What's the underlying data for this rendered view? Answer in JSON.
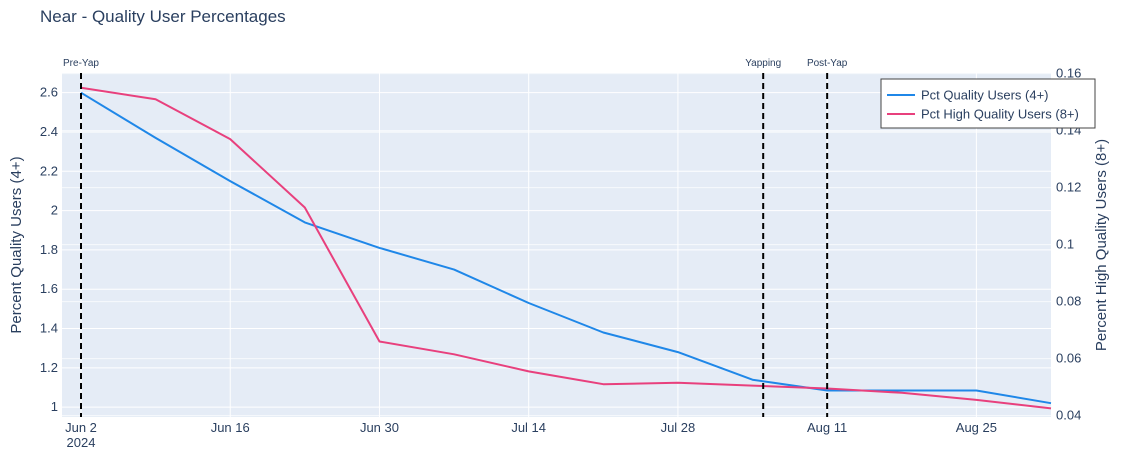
{
  "colors": {
    "plot_bg": "#E5ECF6",
    "grid": "#FFFFFF",
    "series_quality": "#1F87E8",
    "series_high_quality": "#E8407D",
    "event_line": "#000000",
    "text": "#2A3F5F"
  },
  "chart_data": {
    "type": "line",
    "title": "Near - Quality User Percentages",
    "xlabel": "",
    "ylabel": "Percent Quality Users (4+)",
    "y2label": "Percent High Quality Users (8+)",
    "grid": true,
    "legend_position": "top-right",
    "x": [
      "2024-06-02",
      "2024-06-09",
      "2024-06-16",
      "2024-06-23",
      "2024-06-30",
      "2024-07-07",
      "2024-07-14",
      "2024-07-21",
      "2024-07-28",
      "2024-08-04",
      "2024-08-11",
      "2024-08-18",
      "2024-08-25",
      "2024-09-01"
    ],
    "xlim": [
      "2024-06-02",
      "2024-09-01"
    ],
    "ylim": [
      0.95,
      2.7
    ],
    "y2lim": [
      0.0395,
      0.1602
    ],
    "x_ticks": [
      {
        "date": "2024-06-02",
        "label": "Jun 2",
        "sublabel": "2024"
      },
      {
        "date": "2024-06-16",
        "label": "Jun 16",
        "sublabel": ""
      },
      {
        "date": "2024-06-30",
        "label": "Jun 30",
        "sublabel": ""
      },
      {
        "date": "2024-07-14",
        "label": "Jul 14",
        "sublabel": ""
      },
      {
        "date": "2024-07-28",
        "label": "Jul 28",
        "sublabel": ""
      },
      {
        "date": "2024-08-11",
        "label": "Aug 11",
        "sublabel": ""
      },
      {
        "date": "2024-08-25",
        "label": "Aug 25",
        "sublabel": ""
      }
    ],
    "y_ticks": [
      1,
      1.2,
      1.4,
      1.6,
      1.8,
      2,
      2.2,
      2.4,
      2.6
    ],
    "y2_ticks": [
      0.04,
      0.06,
      0.08,
      0.1,
      0.12,
      0.14,
      0.16
    ],
    "series": [
      {
        "name": "Pct Quality Users (4+)",
        "axis": "y",
        "color": "#1F87E8",
        "values": [
          2.6,
          2.37,
          2.15,
          1.94,
          1.81,
          1.7,
          1.53,
          1.38,
          1.28,
          1.14,
          1.085,
          1.085,
          1.085,
          1.02
        ]
      },
      {
        "name": "Pct High Quality Users (8+)",
        "axis": "y2",
        "color": "#E8407D",
        "values": [
          0.155,
          0.151,
          0.137,
          0.113,
          0.066,
          0.0615,
          0.0555,
          0.051,
          0.0515,
          0.0505,
          0.0495,
          0.048,
          0.0455,
          0.0425
        ]
      }
    ],
    "events": [
      {
        "date": "2024-06-02",
        "label": "Pre-Yap"
      },
      {
        "date": "2024-08-05",
        "label": "Yapping"
      },
      {
        "date": "2024-08-11",
        "label": "Post-Yap"
      }
    ]
  }
}
